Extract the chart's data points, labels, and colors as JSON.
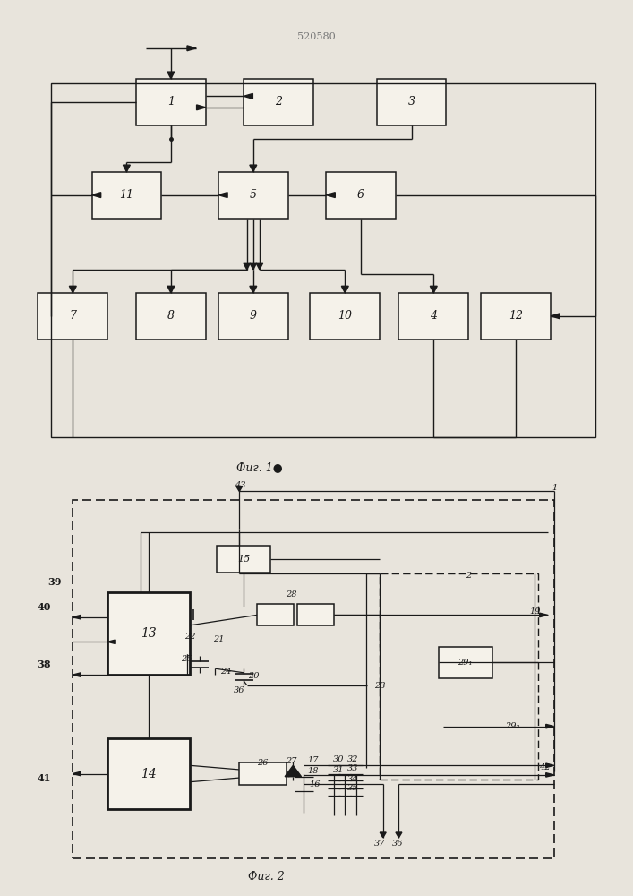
{
  "title": "520580",
  "fig1_label": "Фиг. 1●",
  "fig2_label": "Фиг. 2",
  "bg": "#e8e4dc",
  "lc": "#1a1a1a",
  "bc": "#f5f2ea",
  "fig1": {
    "outer": [
      0.08,
      0.1,
      0.86,
      0.76
    ],
    "boxes": {
      "1": [
        0.27,
        0.82,
        0.11,
        0.1
      ],
      "2": [
        0.44,
        0.82,
        0.11,
        0.1
      ],
      "3": [
        0.65,
        0.82,
        0.11,
        0.1
      ],
      "11": [
        0.2,
        0.62,
        0.11,
        0.1
      ],
      "5": [
        0.4,
        0.62,
        0.11,
        0.1
      ],
      "6": [
        0.57,
        0.62,
        0.11,
        0.1
      ],
      "7": [
        0.115,
        0.36,
        0.11,
        0.1
      ],
      "8": [
        0.27,
        0.36,
        0.11,
        0.1
      ],
      "9": [
        0.4,
        0.36,
        0.11,
        0.1
      ],
      "10": [
        0.545,
        0.36,
        0.11,
        0.1
      ],
      "4": [
        0.685,
        0.36,
        0.11,
        0.1
      ],
      "12": [
        0.815,
        0.36,
        0.11,
        0.1
      ]
    }
  },
  "fig2": {
    "outer_dash": [
      0.115,
      0.07,
      0.76,
      0.87
    ],
    "inner_dash": [
      0.6,
      0.26,
      0.25,
      0.5
    ],
    "boxes": {
      "13": [
        0.235,
        0.615,
        0.13,
        0.2
      ],
      "14": [
        0.235,
        0.275,
        0.13,
        0.17
      ],
      "15": [
        0.385,
        0.795,
        0.085,
        0.065
      ],
      "29_1": [
        0.735,
        0.545,
        0.085,
        0.075
      ],
      "26": [
        0.415,
        0.275,
        0.075,
        0.055
      ]
    }
  }
}
